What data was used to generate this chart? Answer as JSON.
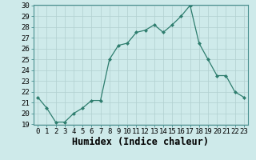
{
  "x": [
    0,
    1,
    2,
    3,
    4,
    5,
    6,
    7,
    8,
    9,
    10,
    11,
    12,
    13,
    14,
    15,
    16,
    17,
    18,
    19,
    20,
    21,
    22,
    23
  ],
  "y": [
    21.5,
    20.5,
    19.2,
    19.2,
    20.0,
    20.5,
    21.2,
    21.2,
    25.0,
    26.3,
    26.5,
    27.5,
    27.7,
    28.2,
    27.5,
    28.2,
    29.0,
    30.0,
    26.5,
    25.0,
    23.5,
    23.5,
    22.0,
    21.5
  ],
  "xlabel": "Humidex (Indice chaleur)",
  "line_color": "#2e7d6e",
  "marker_color": "#2e7d6e",
  "bg_color": "#ceeaea",
  "grid_color": "#b0d0d0",
  "ylim": [
    19,
    30
  ],
  "xlim": [
    -0.5,
    23.5
  ],
  "yticks": [
    19,
    20,
    21,
    22,
    23,
    24,
    25,
    26,
    27,
    28,
    29,
    30
  ],
  "xtick_labels": [
    "0",
    "1",
    "2",
    "3",
    "4",
    "5",
    "6",
    "7",
    "8",
    "9",
    "10",
    "11",
    "12",
    "13",
    "14",
    "15",
    "16",
    "17",
    "18",
    "19",
    "20",
    "21",
    "22",
    "23"
  ],
  "tick_fontsize": 6.5,
  "xlabel_fontsize": 8.5
}
